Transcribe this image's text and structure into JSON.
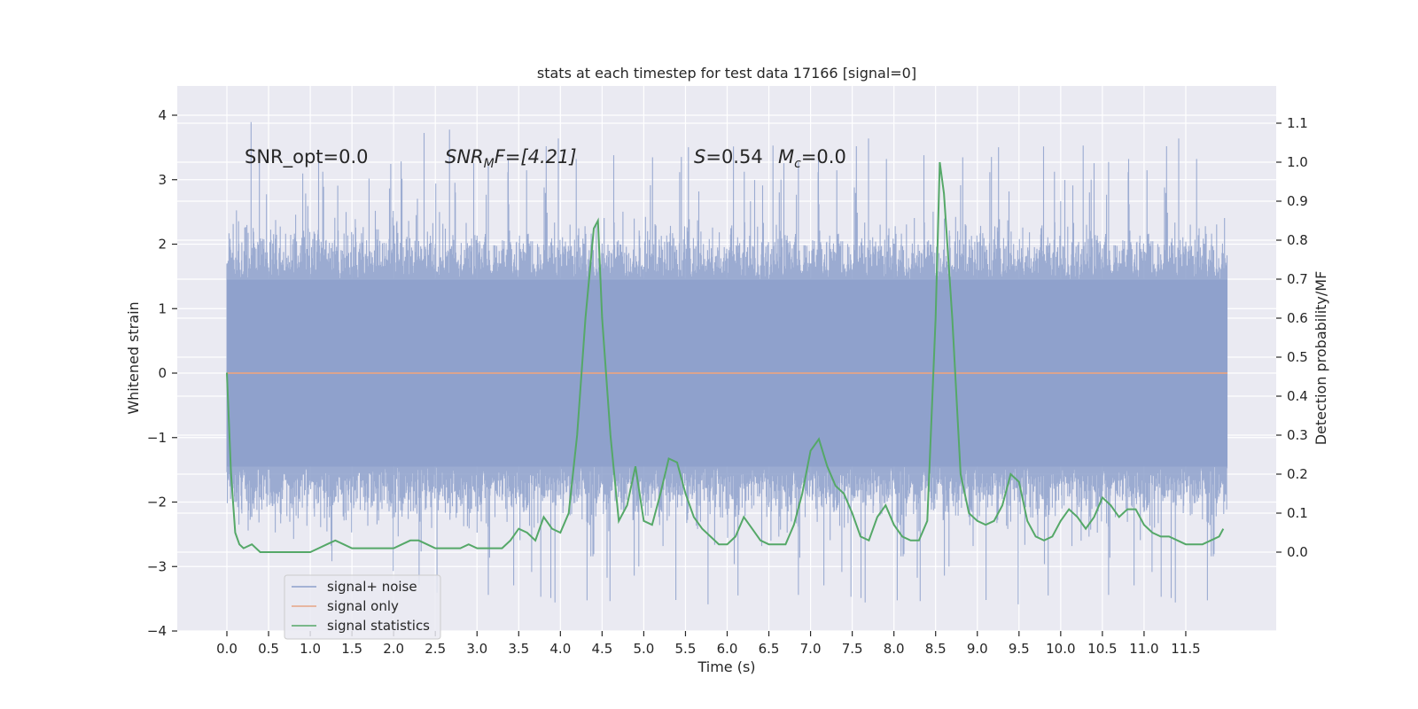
{
  "chart_data": {
    "type": "line",
    "title": "stats at each timestep for test data 17166 [signal=0]",
    "xlabel": "Time (s)",
    "ylabel": "Whitened strain",
    "y2label": "Detection probability/MF",
    "xlim": [
      0.0,
      12.0
    ],
    "ylim": [
      -4,
      4.4
    ],
    "y2lim": [
      -0.2,
      1.17
    ],
    "xticks": [
      "0.0",
      "0.5",
      "1.0",
      "1.5",
      "2.0",
      "2.5",
      "3.0",
      "3.5",
      "4.0",
      "4.5",
      "5.0",
      "5.5",
      "6.0",
      "6.5",
      "7.0",
      "7.5",
      "8.0",
      "8.5",
      "9.0",
      "9.5",
      "10.0",
      "10.5",
      "11.0",
      "11.5"
    ],
    "yticks": [
      "4",
      "3",
      "2",
      "1",
      "0",
      "−1",
      "−2",
      "−3",
      "−4"
    ],
    "y2ticks": [
      "1.1",
      "1.0",
      "0.9",
      "0.8",
      "0.7",
      "0.6",
      "0.5",
      "0.4",
      "0.3",
      "0.2",
      "0.1",
      "0.0"
    ],
    "annotations": {
      "snr_opt": "SNR_opt=0.0",
      "snr_mf_label": "SNR",
      "snr_mf_sub": "M",
      "snr_mf_rest": "F=[4.21]",
      "s_label": "S",
      "s_value": "=0.54",
      "mc_label": "M",
      "mc_sub": "c",
      "mc_value": "=0.0"
    },
    "legend": {
      "position": "lower-left",
      "items": [
        "signal+ noise",
        "signal only",
        "signal statistics"
      ]
    },
    "colors": {
      "noise": "#8da0cb",
      "signal_only": "#e6a585",
      "stats": "#55a868",
      "background": "#eaeaf2",
      "grid": "#ffffff"
    },
    "series": [
      {
        "name": "signal+ noise",
        "axis": "left",
        "duration": 12.0,
        "samples": 2400,
        "core_amplitude": 1.45,
        "envelope_peak": 3.9,
        "envelope_trough": -3.6
      },
      {
        "name": "signal only",
        "axis": "left",
        "x": [
          0.0,
          12.0
        ],
        "values": [
          0.0,
          0.0
        ]
      },
      {
        "name": "signal statistics",
        "axis": "right",
        "x": [
          0.0,
          0.05,
          0.1,
          0.15,
          0.2,
          0.3,
          0.4,
          0.5,
          0.6,
          0.7,
          0.8,
          0.9,
          1.0,
          1.1,
          1.2,
          1.3,
          1.4,
          1.5,
          1.6,
          1.7,
          1.8,
          1.9,
          2.0,
          2.1,
          2.2,
          2.3,
          2.4,
          2.5,
          2.6,
          2.7,
          2.8,
          2.9,
          3.0,
          3.1,
          3.2,
          3.3,
          3.4,
          3.5,
          3.6,
          3.7,
          3.8,
          3.9,
          4.0,
          4.1,
          4.2,
          4.3,
          4.4,
          4.45,
          4.5,
          4.6,
          4.7,
          4.8,
          4.9,
          5.0,
          5.1,
          5.2,
          5.3,
          5.4,
          5.5,
          5.6,
          5.7,
          5.8,
          5.9,
          6.0,
          6.1,
          6.2,
          6.3,
          6.4,
          6.5,
          6.6,
          6.7,
          6.8,
          6.9,
          7.0,
          7.1,
          7.2,
          7.3,
          7.4,
          7.5,
          7.6,
          7.7,
          7.8,
          7.9,
          8.0,
          8.1,
          8.2,
          8.3,
          8.4,
          8.5,
          8.55,
          8.6,
          8.7,
          8.8,
          8.9,
          9.0,
          9.1,
          9.2,
          9.3,
          9.4,
          9.5,
          9.6,
          9.7,
          9.8,
          9.9,
          10.0,
          10.1,
          10.2,
          10.3,
          10.4,
          10.5,
          10.6,
          10.7,
          10.8,
          10.9,
          11.0,
          11.1,
          11.2,
          11.3,
          11.4,
          11.5,
          11.6,
          11.7,
          11.8,
          11.9,
          11.95
        ],
        "values": [
          0.46,
          0.2,
          0.05,
          0.02,
          0.01,
          0.02,
          0.0,
          0.0,
          0.0,
          0.0,
          0.0,
          0.0,
          0.0,
          0.01,
          0.02,
          0.03,
          0.02,
          0.01,
          0.01,
          0.01,
          0.01,
          0.01,
          0.01,
          0.02,
          0.03,
          0.03,
          0.02,
          0.01,
          0.01,
          0.01,
          0.01,
          0.02,
          0.01,
          0.01,
          0.01,
          0.01,
          0.03,
          0.06,
          0.05,
          0.03,
          0.09,
          0.06,
          0.05,
          0.1,
          0.3,
          0.6,
          0.83,
          0.85,
          0.6,
          0.3,
          0.08,
          0.12,
          0.22,
          0.08,
          0.07,
          0.15,
          0.24,
          0.23,
          0.15,
          0.09,
          0.06,
          0.04,
          0.02,
          0.02,
          0.04,
          0.09,
          0.06,
          0.03,
          0.02,
          0.02,
          0.02,
          0.07,
          0.15,
          0.26,
          0.29,
          0.22,
          0.17,
          0.15,
          0.1,
          0.04,
          0.03,
          0.09,
          0.12,
          0.07,
          0.04,
          0.03,
          0.03,
          0.08,
          0.6,
          1.0,
          0.92,
          0.6,
          0.2,
          0.1,
          0.08,
          0.07,
          0.08,
          0.12,
          0.2,
          0.18,
          0.08,
          0.04,
          0.03,
          0.04,
          0.08,
          0.11,
          0.09,
          0.06,
          0.09,
          0.14,
          0.12,
          0.09,
          0.11,
          0.11,
          0.07,
          0.05,
          0.04,
          0.04,
          0.03,
          0.02,
          0.02,
          0.02,
          0.03,
          0.04,
          0.06
        ]
      }
    ]
  }
}
